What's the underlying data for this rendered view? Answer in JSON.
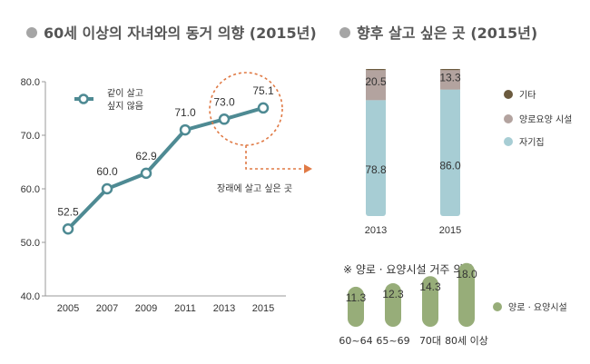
{
  "left": {
    "title": "60세 이상의 자녀와의 동거 의향 (2015년)",
    "legend_label_line1": "같이 살고",
    "legend_label_line2": "싶지 않음",
    "annotation": "장래에 살고 싶은 곳"
  },
  "right": {
    "title": "향후 살고 싶은 곳 (2015년)",
    "subtitle": "※ 양로 · 요양시설 거주 의향"
  },
  "colors": {
    "line": "#4e8a93",
    "marker_fill": "#ffffff",
    "axis": "#999999",
    "home": "#a7cdd4",
    "facility": "#b3a39f",
    "other": "#6b5a3e",
    "capsule": "#97ad79",
    "annotation": "#e07a45",
    "title_bullet": "#a5a5a5"
  },
  "chart_data": [
    {
      "type": "line",
      "x": [
        "2005",
        "2007",
        "2009",
        "2011",
        "2013",
        "2015"
      ],
      "series": [
        {
          "name": "같이 살고 싶지 않음",
          "values": [
            52.5,
            60.0,
            62.9,
            71.0,
            73.0,
            75.1
          ]
        }
      ],
      "ylim": [
        40.0,
        80.0
      ],
      "yticks": [
        "40.0",
        "50.0",
        "60.0",
        "70.0",
        "80.0"
      ],
      "legend": "top-left"
    },
    {
      "type": "bar",
      "stacked": true,
      "categories": [
        "2013",
        "2015"
      ],
      "series": [
        {
          "name": "자기집",
          "values": [
            78.8,
            86.0
          ]
        },
        {
          "name": "양로요양 시설",
          "values": [
            20.5,
            13.3
          ]
        },
        {
          "name": "기타",
          "values": [
            0.7,
            0.7
          ]
        }
      ],
      "legend_order": [
        "기타",
        "양로요양 시설",
        "자기집"
      ],
      "legend": "right"
    },
    {
      "type": "bar",
      "categories": [
        "60~64",
        "65~69",
        "70대",
        "80세 이상"
      ],
      "series": [
        {
          "name": "양로 · 요양시설",
          "values": [
            11.3,
            12.3,
            14.3,
            18.0
          ]
        }
      ],
      "legend": "right"
    }
  ]
}
